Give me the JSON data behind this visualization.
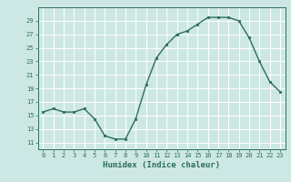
{
  "x": [
    0,
    1,
    2,
    3,
    4,
    5,
    6,
    7,
    8,
    9,
    10,
    11,
    12,
    13,
    14,
    15,
    16,
    17,
    18,
    19,
    20,
    21,
    22,
    23
  ],
  "y": [
    15.5,
    16.0,
    15.5,
    15.5,
    16.0,
    14.5,
    12.0,
    11.5,
    11.5,
    14.5,
    19.5,
    23.5,
    25.5,
    27.0,
    27.5,
    28.5,
    29.5,
    29.5,
    29.5,
    29.0,
    26.5,
    23.0,
    20.0,
    18.5
  ],
  "line_color": "#2d6e5e",
  "marker": "o",
  "markersize": 1.8,
  "linewidth": 1.0,
  "xlabel": "Humidex (Indice chaleur)",
  "xlabel_fontsize": 6.5,
  "bg_color": "#cde8e4",
  "grid_color": "#ffffff",
  "grid_minor_color": "#e8c8c8",
  "tick_color": "#2d6e5e",
  "label_color": "#2d6e5e",
  "ylim": [
    10,
    31
  ],
  "xlim": [
    -0.5,
    23.5
  ],
  "yticks": [
    11,
    13,
    15,
    17,
    19,
    21,
    23,
    25,
    27,
    29
  ],
  "xticks": [
    0,
    1,
    2,
    3,
    4,
    5,
    6,
    7,
    8,
    9,
    10,
    11,
    12,
    13,
    14,
    15,
    16,
    17,
    18,
    19,
    20,
    21,
    22,
    23
  ],
  "tick_fontsize": 5.0
}
